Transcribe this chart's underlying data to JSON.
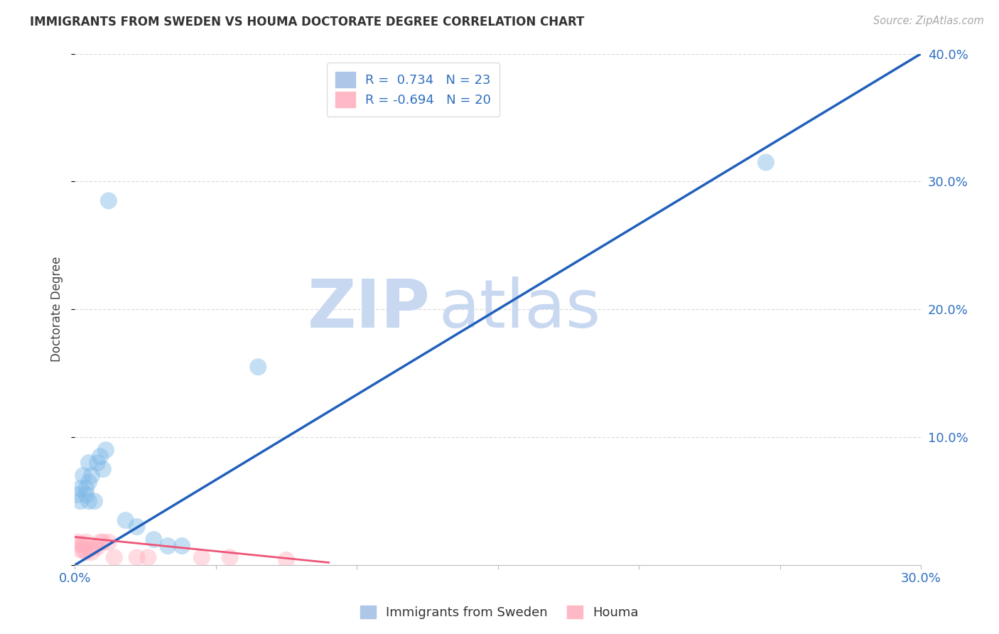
{
  "title": "IMMIGRANTS FROM SWEDEN VS HOUMA DOCTORATE DEGREE CORRELATION CHART",
  "source": "Source: ZipAtlas.com",
  "xlabel_blue": "Immigrants from Sweden",
  "xlabel_pink": "Houma",
  "ylabel": "Doctorate Degree",
  "xlim": [
    0.0,
    0.3
  ],
  "ylim": [
    0.0,
    0.4
  ],
  "xticks": [
    0.0,
    0.05,
    0.1,
    0.15,
    0.2,
    0.25,
    0.3
  ],
  "xtick_labels": [
    "0.0%",
    "",
    "",
    "",
    "",
    "",
    "30.0%"
  ],
  "yticks": [
    0.1,
    0.2,
    0.3,
    0.4
  ],
  "ytick_labels": [
    "10.0%",
    "20.0%",
    "30.0%",
    "40.0%"
  ],
  "R_blue": 0.734,
  "N_blue": 23,
  "R_pink": -0.694,
  "N_pink": 20,
  "blue_color": "#7EB8E8",
  "pink_color": "#FFB0C0",
  "blue_scatter": [
    [
      0.001,
      0.055
    ],
    [
      0.002,
      0.06
    ],
    [
      0.002,
      0.05
    ],
    [
      0.003,
      0.07
    ],
    [
      0.004,
      0.055
    ],
    [
      0.004,
      0.06
    ],
    [
      0.005,
      0.05
    ],
    [
      0.005,
      0.065
    ],
    [
      0.005,
      0.08
    ],
    [
      0.006,
      0.07
    ],
    [
      0.007,
      0.05
    ],
    [
      0.008,
      0.08
    ],
    [
      0.009,
      0.085
    ],
    [
      0.01,
      0.075
    ],
    [
      0.011,
      0.09
    ],
    [
      0.012,
      0.285
    ],
    [
      0.065,
      0.155
    ],
    [
      0.018,
      0.035
    ],
    [
      0.022,
      0.03
    ],
    [
      0.028,
      0.02
    ],
    [
      0.033,
      0.015
    ],
    [
      0.038,
      0.015
    ],
    [
      0.245,
      0.315
    ]
  ],
  "pink_scatter": [
    [
      0.001,
      0.018
    ],
    [
      0.002,
      0.012
    ],
    [
      0.002,
      0.016
    ],
    [
      0.003,
      0.012
    ],
    [
      0.003,
      0.016
    ],
    [
      0.004,
      0.01
    ],
    [
      0.004,
      0.018
    ],
    [
      0.005,
      0.012
    ],
    [
      0.006,
      0.01
    ],
    [
      0.007,
      0.014
    ],
    [
      0.008,
      0.014
    ],
    [
      0.009,
      0.018
    ],
    [
      0.01,
      0.018
    ],
    [
      0.012,
      0.018
    ],
    [
      0.014,
      0.006
    ],
    [
      0.022,
      0.006
    ],
    [
      0.026,
      0.006
    ],
    [
      0.045,
      0.006
    ],
    [
      0.055,
      0.006
    ],
    [
      0.075,
      0.004
    ]
  ],
  "blue_trendline_x": [
    0.0,
    0.3
  ],
  "blue_trendline_y": [
    0.0,
    0.4
  ],
  "pink_trendline_x": [
    0.0,
    0.09
  ],
  "pink_trendline_y": [
    0.022,
    0.002
  ],
  "watermark1": "ZIP",
  "watermark2": "atlas",
  "watermark_color": "#C8D8F0",
  "background_color": "#FFFFFF",
  "grid_color": "#DDDDDD"
}
